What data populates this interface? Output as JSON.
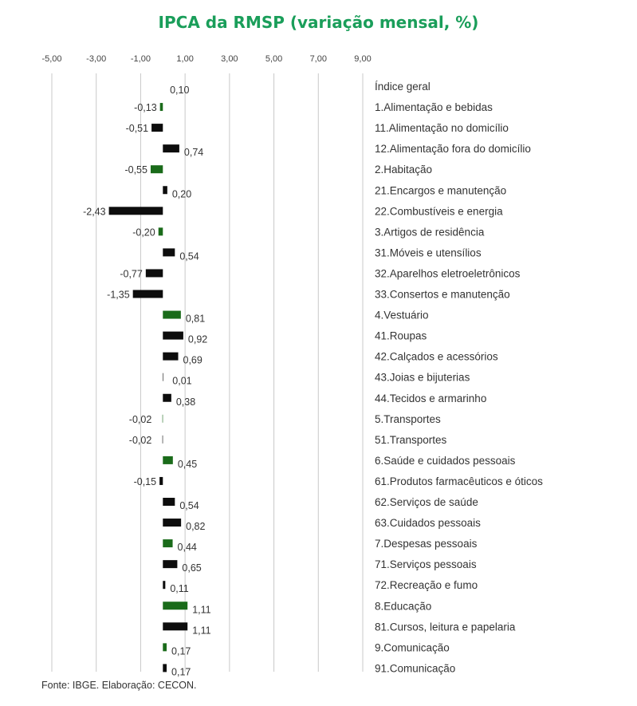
{
  "chart_data": {
    "type": "bar",
    "orientation": "horizontal",
    "title": "IPCA da RMSP (variação mensal, %)",
    "source": "Fonte: IBGE. Elaboração: CECON.",
    "xlim": [
      -5,
      9
    ],
    "x_ticks": [
      {
        "value": -5,
        "label": "-5,00"
      },
      {
        "value": -3,
        "label": "-3,00"
      },
      {
        "value": -1,
        "label": "-1,00"
      },
      {
        "value": 1,
        "label": "1,00"
      },
      {
        "value": 3,
        "label": "3,00"
      },
      {
        "value": 5,
        "label": "5,00"
      },
      {
        "value": 7,
        "label": "7,00"
      },
      {
        "value": 9,
        "label": "9,00"
      }
    ],
    "grid": "vertical",
    "colors": {
      "group": "#1a6b1a",
      "subitem": "#0d0d0d",
      "accent_title": "#1a9e5a",
      "grid": "#c8c8c8"
    },
    "categories": [
      {
        "label": "Índice geral",
        "value": 0.1,
        "value_label": "0,10",
        "kind": "index"
      },
      {
        "label": "1.Alimentação e bebidas",
        "value": -0.13,
        "value_label": "-0,13",
        "kind": "group"
      },
      {
        "label": "11.Alimentação no domicílio",
        "value": -0.51,
        "value_label": "-0,51",
        "kind": "subitem"
      },
      {
        "label": "12.Alimentação fora do domicílio",
        "value": 0.74,
        "value_label": "0,74",
        "kind": "subitem"
      },
      {
        "label": "2.Habitação",
        "value": -0.55,
        "value_label": "-0,55",
        "kind": "group"
      },
      {
        "label": "21.Encargos e manutenção",
        "value": 0.2,
        "value_label": "0,20",
        "kind": "subitem"
      },
      {
        "label": "22.Combustíveis e energia",
        "value": -2.43,
        "value_label": "-2,43",
        "kind": "subitem"
      },
      {
        "label": "3.Artigos de residência",
        "value": -0.2,
        "value_label": "-0,20",
        "kind": "group"
      },
      {
        "label": "31.Móveis e utensílios",
        "value": 0.54,
        "value_label": "0,54",
        "kind": "subitem"
      },
      {
        "label": "32.Aparelhos eletroeletrônicos",
        "value": -0.77,
        "value_label": "-0,77",
        "kind": "subitem"
      },
      {
        "label": "33.Consertos e manutenção",
        "value": -1.35,
        "value_label": "-1,35",
        "kind": "subitem"
      },
      {
        "label": "4.Vestuário",
        "value": 0.81,
        "value_label": "0,81",
        "kind": "group"
      },
      {
        "label": "41.Roupas",
        "value": 0.92,
        "value_label": "0,92",
        "kind": "subitem"
      },
      {
        "label": "42.Calçados e acessórios",
        "value": 0.69,
        "value_label": "0,69",
        "kind": "subitem"
      },
      {
        "label": "43.Joias e bijuterias",
        "value": 0.01,
        "value_label": "0,01",
        "kind": "subitem"
      },
      {
        "label": "44.Tecidos e armarinho",
        "value": 0.38,
        "value_label": "0,38",
        "kind": "subitem"
      },
      {
        "label": "5.Transportes",
        "value": -0.02,
        "value_label": "-0,02",
        "kind": "group"
      },
      {
        "label": "51.Transportes",
        "value": -0.02,
        "value_label": "-0,02",
        "kind": "subitem"
      },
      {
        "label": "6.Saúde e cuidados pessoais",
        "value": 0.45,
        "value_label": "0,45",
        "kind": "group"
      },
      {
        "label": "61.Produtos farmacêuticos e óticos",
        "value": -0.15,
        "value_label": "-0,15",
        "kind": "subitem"
      },
      {
        "label": "62.Serviços de saúde",
        "value": 0.54,
        "value_label": "0,54",
        "kind": "subitem"
      },
      {
        "label": "63.Cuidados pessoais",
        "value": 0.82,
        "value_label": "0,82",
        "kind": "subitem"
      },
      {
        "label": "7.Despesas pessoais",
        "value": 0.44,
        "value_label": "0,44",
        "kind": "group"
      },
      {
        "label": "71.Serviços pessoais",
        "value": 0.65,
        "value_label": "0,65",
        "kind": "subitem"
      },
      {
        "label": "72.Recreação e fumo",
        "value": 0.11,
        "value_label": "0,11",
        "kind": "subitem"
      },
      {
        "label": "8.Educação",
        "value": 1.11,
        "value_label": "1,11",
        "kind": "group"
      },
      {
        "label": "81.Cursos, leitura e papelaria",
        "value": 1.11,
        "value_label": "1,11",
        "kind": "subitem"
      },
      {
        "label": "9.Comunicação",
        "value": 0.17,
        "value_label": "0,17",
        "kind": "group"
      },
      {
        "label": "91.Comunicação",
        "value": 0.17,
        "value_label": "0,17",
        "kind": "subitem"
      }
    ]
  }
}
